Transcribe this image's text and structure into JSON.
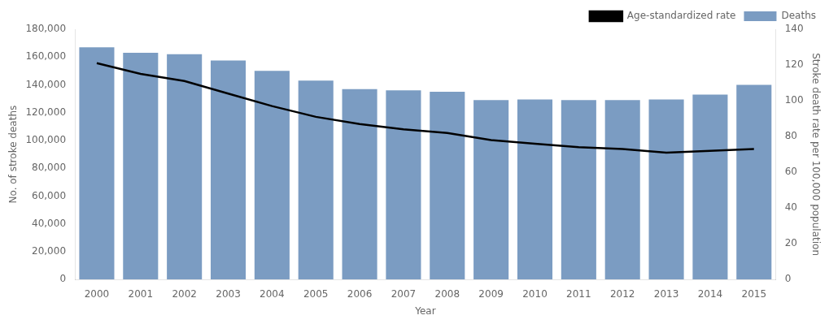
{
  "chart_data": {
    "type": "bar",
    "xlabel": "Year",
    "ylabel": "No. of stroke deaths",
    "y2label": "Stroke death rate per 100,000 population",
    "categories": [
      "2000",
      "2001",
      "2002",
      "2003",
      "2004",
      "2005",
      "2006",
      "2007",
      "2008",
      "2009",
      "2010",
      "2011",
      "2012",
      "2013",
      "2014",
      "2015"
    ],
    "series": [
      {
        "name": "Deaths",
        "type": "bar",
        "color": "#7b9cc2",
        "values": [
          167000,
          163000,
          162000,
          157500,
          150000,
          143000,
          137000,
          136000,
          135000,
          129000,
          129500,
          129000,
          129000,
          129500,
          133000,
          140000
        ]
      },
      {
        "name": "Age-standardized rate",
        "type": "line",
        "color": "#000000",
        "axis": "y2",
        "values": [
          121,
          115,
          111,
          104,
          97,
          91,
          87,
          84,
          82,
          78,
          76,
          74,
          73,
          71,
          72,
          73
        ]
      }
    ],
    "ylim": [
      0,
      180000
    ],
    "yticks": [
      0,
      {
        "value": 20000,
        "label": "20,000"
      },
      {
        "value": 40000,
        "label": "40,000"
      },
      {
        "value": 60000,
        "label": "60,000"
      },
      {
        "value": 80000,
        "label": "80,000"
      },
      {
        "value": 100000,
        "label": "100,000"
      },
      {
        "value": 120000,
        "label": "120,000"
      },
      {
        "value": 140000,
        "label": "140,000"
      },
      {
        "value": 160000,
        "label": "160,000"
      },
      {
        "value": 180000,
        "label": "180,000"
      }
    ],
    "y2lim": [
      0,
      140
    ],
    "y2ticks": [
      0,
      20,
      40,
      60,
      80,
      100,
      120,
      140
    ],
    "legend": "upper right",
    "grid": false
  }
}
